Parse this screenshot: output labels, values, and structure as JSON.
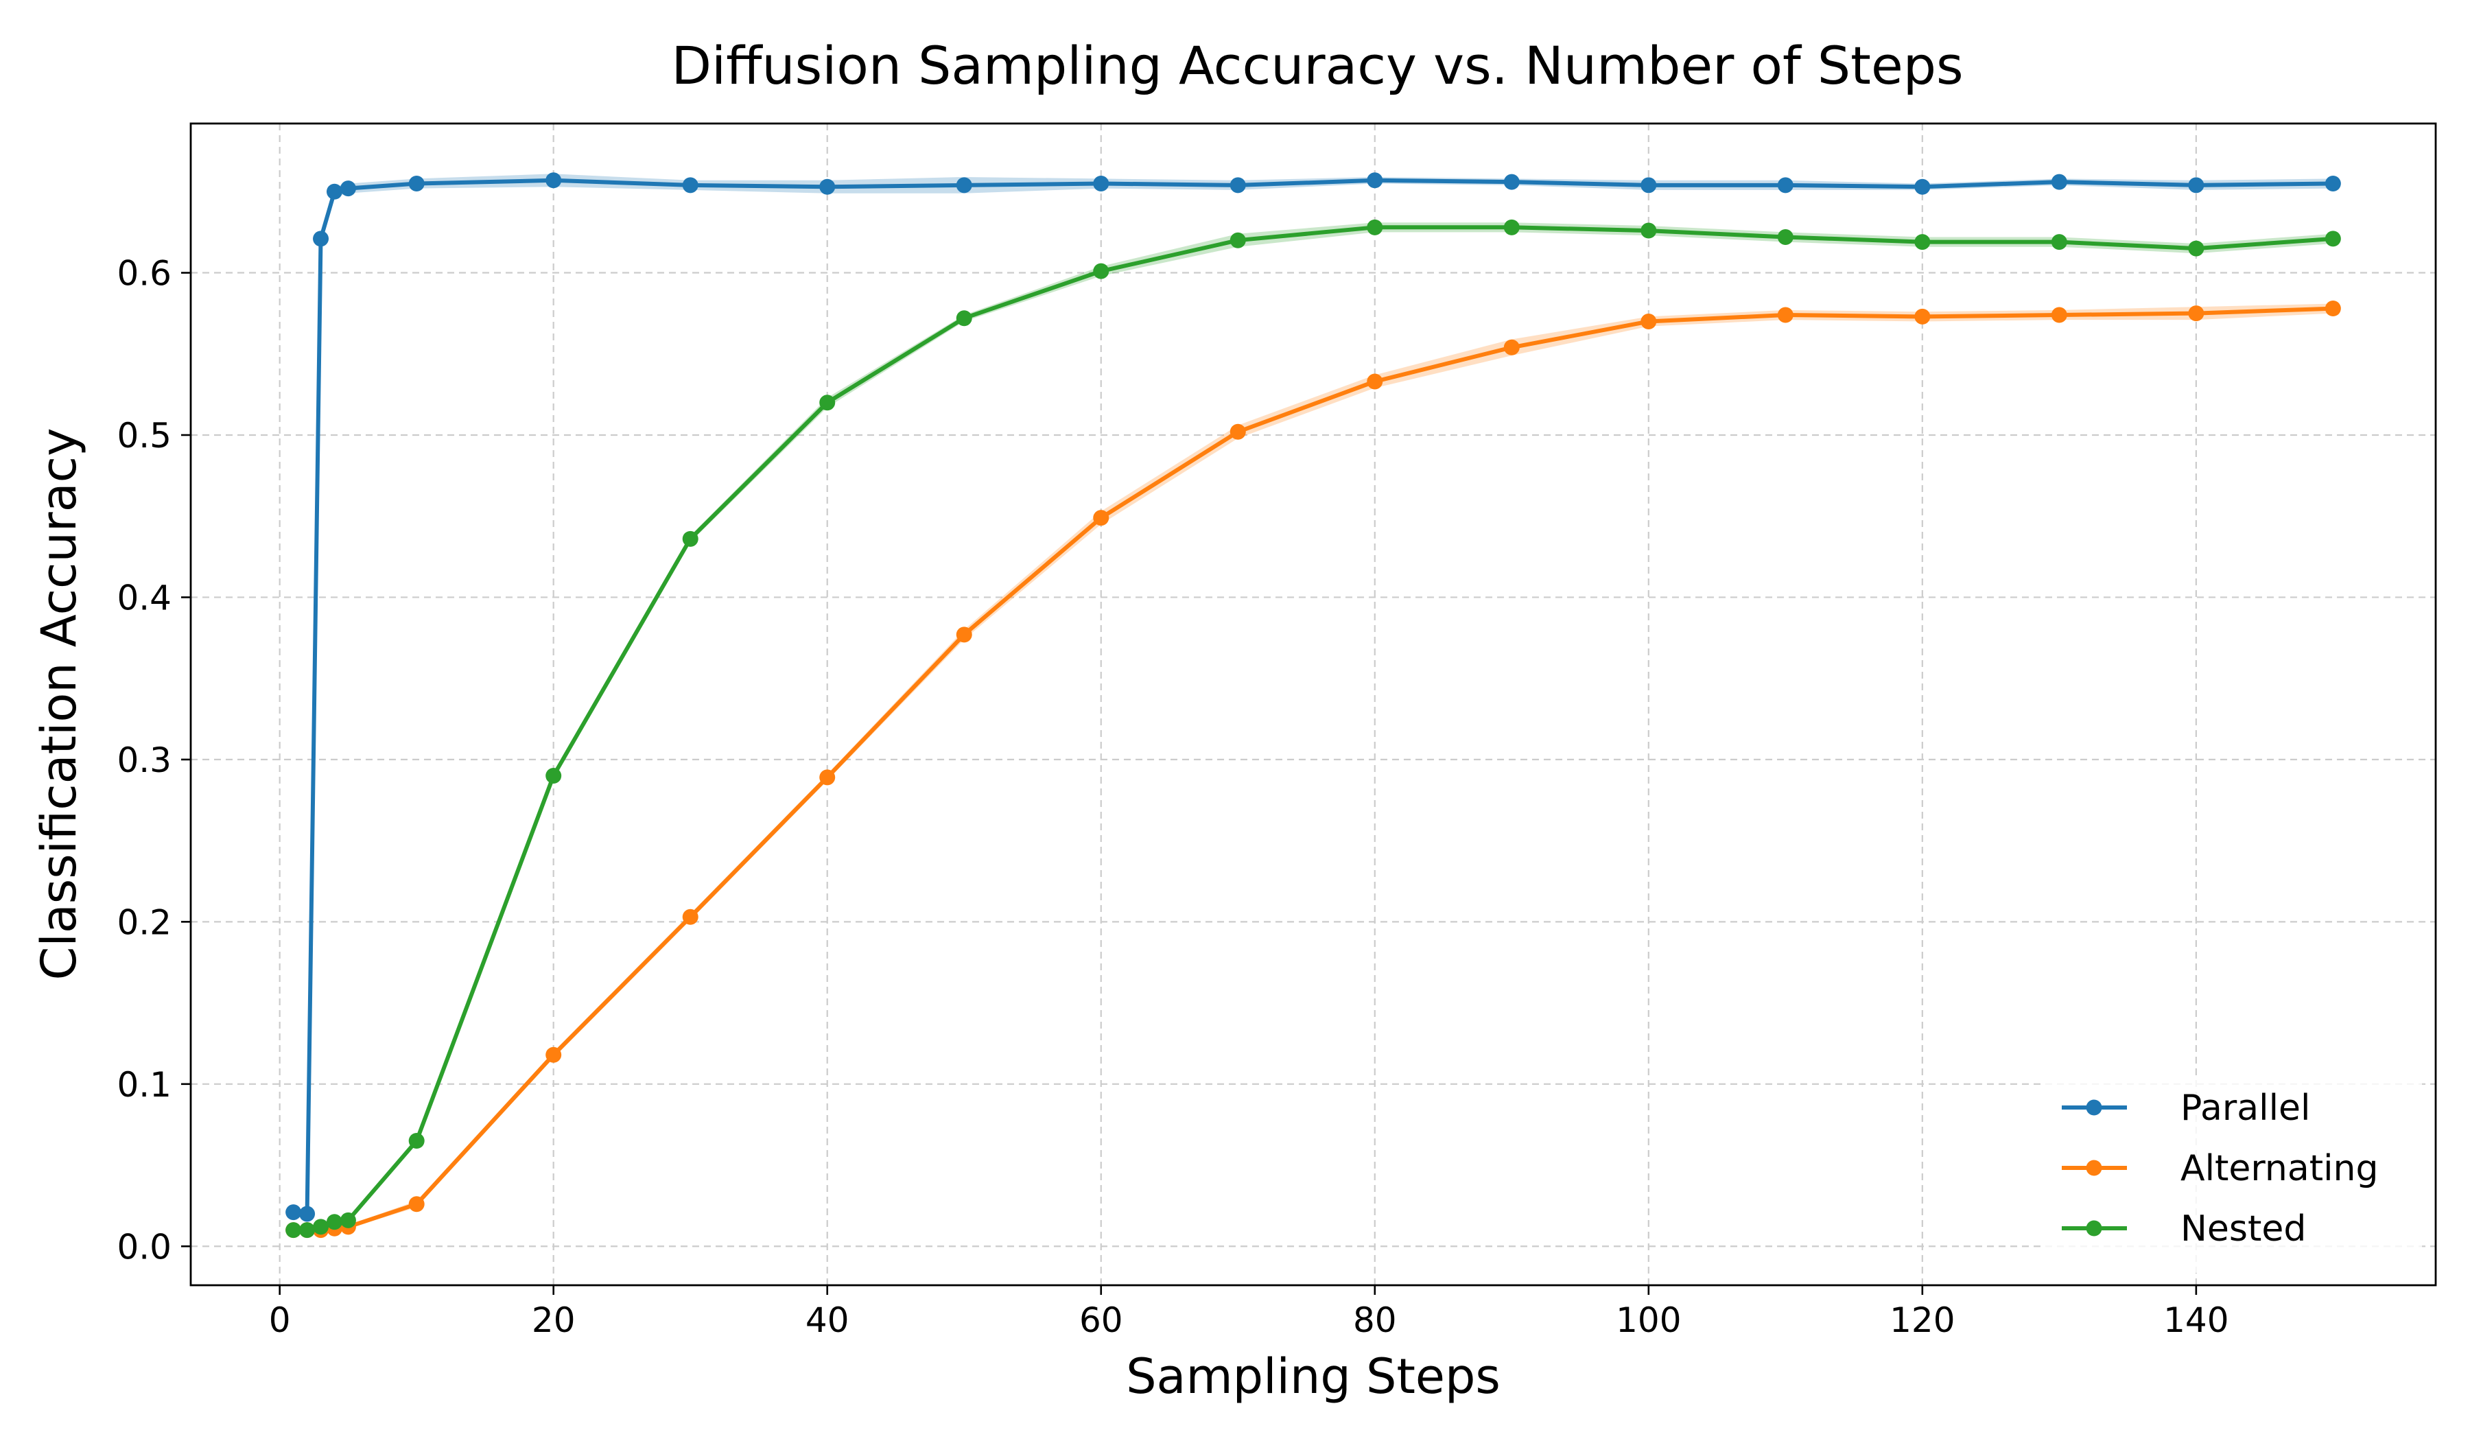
{
  "chart_data": {
    "type": "line",
    "title": "Diffusion Sampling Accuracy vs. Number of Steps",
    "xlabel": "Sampling Steps",
    "ylabel": "Classification Accuracy",
    "xlim": [
      -6.5,
      157.5
    ],
    "ylim": [
      -0.024,
      0.692
    ],
    "xticks": [
      0,
      20,
      40,
      60,
      80,
      100,
      120,
      140
    ],
    "yticks": [
      0.0,
      0.1,
      0.2,
      0.3,
      0.4,
      0.5,
      0.6
    ],
    "xtick_labels": [
      "0",
      "20",
      "40",
      "60",
      "80",
      "100",
      "120",
      "140"
    ],
    "ytick_labels": [
      "0.0",
      "0.1",
      "0.2",
      "0.3",
      "0.4",
      "0.5",
      "0.6"
    ],
    "grid": true,
    "legend_position": "lower-right",
    "x": [
      1,
      2,
      3,
      4,
      5,
      10,
      20,
      30,
      40,
      50,
      60,
      70,
      80,
      90,
      100,
      110,
      120,
      130,
      140,
      150
    ],
    "series": [
      {
        "name": "Parallel",
        "color": "#1f77b4",
        "values": [
          0.021,
          0.02,
          0.621,
          0.65,
          0.652,
          0.655,
          0.657,
          0.654,
          0.653,
          0.654,
          0.655,
          0.654,
          0.657,
          0.656,
          0.654,
          0.654,
          0.653,
          0.656,
          0.654,
          0.655
        ],
        "band": [
          0.002,
          0.002,
          0.003,
          0.003,
          0.003,
          0.003,
          0.004,
          0.003,
          0.004,
          0.005,
          0.003,
          0.003,
          0.002,
          0.002,
          0.003,
          0.003,
          0.002,
          0.002,
          0.003,
          0.003
        ]
      },
      {
        "name": "Alternating",
        "color": "#ff7f0e",
        "values": [
          0.01,
          0.01,
          0.01,
          0.011,
          0.012,
          0.026,
          0.118,
          0.203,
          0.289,
          0.377,
          0.449,
          0.502,
          0.533,
          0.554,
          0.57,
          0.574,
          0.573,
          0.574,
          0.575,
          0.578
        ],
        "band": [
          0.001,
          0.001,
          0.001,
          0.001,
          0.001,
          0.002,
          0.002,
          0.002,
          0.002,
          0.003,
          0.004,
          0.004,
          0.004,
          0.005,
          0.003,
          0.003,
          0.003,
          0.003,
          0.004,
          0.003
        ]
      },
      {
        "name": "Nested",
        "color": "#2ca02c",
        "values": [
          0.01,
          0.01,
          0.012,
          0.015,
          0.016,
          0.065,
          0.29,
          0.436,
          0.52,
          0.572,
          0.601,
          0.62,
          0.628,
          0.628,
          0.626,
          0.622,
          0.619,
          0.619,
          0.615,
          0.621
        ],
        "band": [
          0.001,
          0.001,
          0.001,
          0.001,
          0.001,
          0.002,
          0.002,
          0.002,
          0.003,
          0.002,
          0.003,
          0.004,
          0.003,
          0.003,
          0.003,
          0.003,
          0.003,
          0.003,
          0.003,
          0.003
        ]
      }
    ]
  }
}
